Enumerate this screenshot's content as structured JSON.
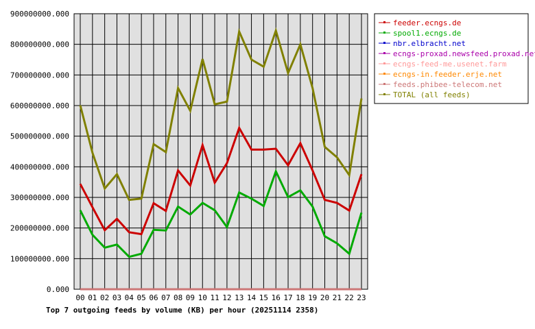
{
  "chart_data": {
    "type": "line",
    "title": "Top 7 outgoing feeds by volume (KB) per hour (20251114 2358)",
    "xlabel": "",
    "ylabel": "",
    "categories": [
      "00",
      "01",
      "02",
      "03",
      "04",
      "05",
      "06",
      "07",
      "08",
      "09",
      "10",
      "11",
      "12",
      "13",
      "14",
      "15",
      "16",
      "17",
      "18",
      "19",
      "20",
      "21",
      "22",
      "23"
    ],
    "ylim": [
      0,
      900000000
    ],
    "yticks": [
      0,
      100000000,
      200000000,
      300000000,
      400000000,
      500000000,
      600000000,
      700000000,
      800000000,
      900000000
    ],
    "ytick_labels": [
      "0.000",
      "100000000.000",
      "200000000.000",
      "300000000.000",
      "400000000.000",
      "500000000.000",
      "600000000.000",
      "700000000.000",
      "800000000.000",
      "900000000.000"
    ],
    "grid": true,
    "legend_position": "right",
    "series": [
      {
        "name": "feeder.ecngs.de",
        "color": "#cc0000",
        "values": [
          344000000,
          268000000,
          193000000,
          230000000,
          186000000,
          180000000,
          281000000,
          256000000,
          388000000,
          339000000,
          471000000,
          348000000,
          412000000,
          527000000,
          456000000,
          456000000,
          459000000,
          405000000,
          477000000,
          388000000,
          292000000,
          282000000,
          257000000,
          376000000
        ]
      },
      {
        "name": "spool1.ecngs.de",
        "color": "#00aa00",
        "values": [
          258000000,
          178000000,
          136000000,
          146000000,
          106000000,
          116000000,
          194000000,
          192000000,
          270000000,
          244000000,
          282000000,
          258000000,
          203000000,
          316000000,
          296000000,
          272000000,
          385000000,
          301000000,
          323000000,
          270000000,
          173000000,
          150000000,
          116000000,
          250000000
        ]
      },
      {
        "name": "nbr.elbracht.net",
        "color": "#0000cc",
        "values": [
          0,
          0,
          0,
          0,
          0,
          0,
          0,
          0,
          0,
          0,
          0,
          0,
          0,
          0,
          0,
          0,
          0,
          0,
          0,
          0,
          0,
          0,
          0,
          0
        ]
      },
      {
        "name": "ecngs-proxad.newsfeed.proxad.net",
        "color": "#aa00aa",
        "values": [
          0,
          0,
          0,
          0,
          0,
          0,
          0,
          0,
          0,
          0,
          0,
          0,
          0,
          0,
          0,
          0,
          0,
          0,
          0,
          0,
          0,
          0,
          0,
          0
        ]
      },
      {
        "name": "ecngs-feed-me.usenet.farm",
        "color": "#ff9999",
        "values": [
          0,
          0,
          0,
          0,
          0,
          0,
          0,
          0,
          0,
          0,
          0,
          0,
          0,
          0,
          0,
          0,
          0,
          0,
          0,
          0,
          0,
          0,
          0,
          0
        ]
      },
      {
        "name": "ecngs-in.feeder.erje.net",
        "color": "#ff8800",
        "values": [
          0,
          0,
          0,
          0,
          0,
          0,
          0,
          0,
          0,
          0,
          0,
          0,
          0,
          0,
          0,
          0,
          0,
          0,
          0,
          0,
          0,
          0,
          0,
          0
        ]
      },
      {
        "name": "feeds.phibee-telecom.net",
        "color": "#cc7777",
        "values": [
          0,
          0,
          0,
          0,
          0,
          0,
          0,
          0,
          0,
          0,
          0,
          0,
          0,
          0,
          0,
          0,
          0,
          0,
          0,
          0,
          0,
          0,
          0,
          0
        ]
      },
      {
        "name": "TOTAL (all feeds)",
        "color": "#808000",
        "values": [
          601000000,
          446000000,
          329000000,
          376000000,
          292000000,
          296000000,
          474000000,
          448000000,
          657000000,
          583000000,
          752000000,
          604000000,
          613000000,
          842000000,
          750000000,
          727000000,
          845000000,
          706000000,
          800000000,
          657000000,
          465000000,
          431000000,
          373000000,
          623000000
        ]
      }
    ]
  }
}
